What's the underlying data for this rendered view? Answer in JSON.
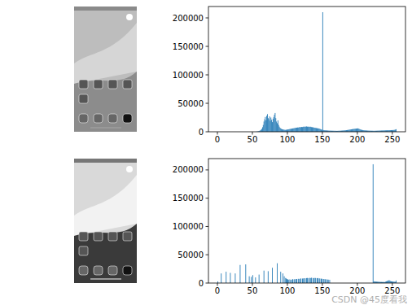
{
  "chart_data": [
    {
      "type": "histogram",
      "color": "#1f77b4",
      "xlim": [
        -12.8,
        268.8
      ],
      "ylim": [
        0,
        220000
      ],
      "xticks": [
        0,
        50,
        100,
        150,
        200,
        250
      ],
      "yticks": [
        0,
        50000,
        100000,
        150000,
        200000
      ],
      "bins": [
        0,
        1,
        2,
        3,
        4,
        5,
        6,
        7,
        8,
        9,
        10,
        11,
        12,
        13,
        14,
        15,
        16,
        17,
        18,
        19,
        20,
        21,
        22,
        23,
        24,
        25,
        26,
        27,
        28,
        29,
        30,
        31,
        32,
        33,
        34,
        35,
        36,
        37,
        38,
        39,
        40,
        41,
        42,
        43,
        44,
        45,
        46,
        47,
        48,
        49,
        50,
        51,
        52,
        53,
        54,
        55,
        56,
        57,
        58,
        59,
        60,
        61,
        62,
        63,
        64,
        65,
        66,
        67,
        68,
        69,
        70,
        71,
        72,
        73,
        74,
        75,
        76,
        77,
        78,
        79,
        80,
        81,
        82,
        83,
        84,
        85,
        86,
        87,
        88,
        89,
        90,
        91,
        92,
        93,
        94,
        95,
        96,
        97,
        98,
        99,
        100,
        101,
        102,
        103,
        104,
        105,
        106,
        107,
        108,
        109,
        110,
        111,
        112,
        113,
        114,
        115,
        116,
        117,
        118,
        119,
        120,
        121,
        122,
        123,
        124,
        125,
        126,
        127,
        128,
        129,
        130,
        131,
        132,
        133,
        134,
        135,
        136,
        137,
        138,
        139,
        140,
        141,
        142,
        143,
        144,
        145,
        146,
        147,
        148,
        149,
        150,
        151,
        152,
        153,
        154,
        155,
        156,
        157,
        158,
        159,
        160,
        161,
        162,
        163,
        164,
        165,
        166,
        167,
        168,
        169,
        170,
        171,
        172,
        173,
        174,
        175,
        176,
        177,
        178,
        179,
        180,
        181,
        182,
        183,
        184,
        185,
        186,
        187,
        188,
        189,
        190,
        191,
        192,
        193,
        194,
        195,
        196,
        197,
        198,
        199,
        200,
        201,
        202,
        203,
        204,
        205,
        206,
        207,
        208,
        209,
        210,
        211,
        212,
        213,
        214,
        215,
        216,
        217,
        218,
        219,
        220,
        221,
        222,
        223,
        224,
        225,
        226,
        227,
        228,
        229,
        230,
        231,
        232,
        233,
        234,
        235,
        236,
        237,
        238,
        239,
        240,
        241,
        242,
        243,
        244,
        245,
        246,
        247,
        248,
        249,
        250,
        251,
        252,
        253,
        254,
        255,
        256
      ],
      "values": [
        0,
        0,
        0,
        0,
        0,
        0,
        0,
        0,
        0,
        0,
        0,
        0,
        0,
        0,
        0,
        0,
        0,
        0,
        0,
        0,
        0,
        0,
        0,
        0,
        0,
        0,
        0,
        0,
        0,
        0,
        0,
        0,
        0,
        0,
        0,
        0,
        0,
        0,
        0,
        0,
        0,
        0,
        0,
        0,
        0,
        0,
        0,
        0,
        0,
        0,
        0,
        0,
        0,
        0,
        0,
        200,
        300,
        500,
        800,
        1200,
        1800,
        2500,
        3500,
        5000,
        8000,
        12000,
        18000,
        22000,
        26000,
        20000,
        28000,
        31000,
        24000,
        22000,
        27000,
        19000,
        25000,
        21000,
        17000,
        23000,
        26000,
        30000,
        33000,
        24000,
        18000,
        15000,
        20000,
        12000,
        9000,
        7000,
        6000,
        5000,
        4500,
        4000,
        3800,
        3500,
        3300,
        3200,
        3500,
        3800,
        4000,
        4200,
        4500,
        4800,
        5000,
        5200,
        5500,
        5800,
        6000,
        6200,
        6500,
        6800,
        7000,
        7200,
        7500,
        7300,
        7800,
        8000,
        8200,
        7900,
        8500,
        8300,
        8800,
        9000,
        8600,
        9200,
        8900,
        9400,
        9000,
        8700,
        9100,
        8800,
        8500,
        8900,
        8200,
        8000,
        7800,
        7500,
        7200,
        7000,
        6800,
        6500,
        6200,
        6000,
        5800,
        5500,
        5000,
        4500,
        4000,
        3500,
        210000,
        3000,
        2800,
        2600,
        2500,
        2400,
        2300,
        2200,
        2100,
        2000,
        2000,
        1900,
        1900,
        1800,
        1800,
        1800,
        1700,
        1700,
        1700,
        1600,
        1600,
        1600,
        1700,
        1700,
        1800,
        1800,
        1900,
        2000,
        2100,
        2200,
        2300,
        2400,
        2500,
        2600,
        2800,
        3000,
        3200,
        3400,
        3600,
        3800,
        4000,
        4200,
        4500,
        4700,
        4900,
        5000,
        5200,
        5300,
        5500,
        5600,
        6000,
        5500,
        5000,
        4500,
        4000,
        3600,
        3300,
        3000,
        2800,
        2600,
        2500,
        2400,
        2300,
        2200,
        2100,
        2000,
        2000,
        1900,
        1900,
        1800,
        1800,
        1800,
        1700,
        1700,
        1700,
        1700,
        1800,
        1800,
        1900,
        1900,
        2000,
        2000,
        2100,
        2100,
        2200,
        2200,
        2300,
        2300,
        2400,
        2400,
        2500,
        2500,
        2600,
        2600,
        2700,
        2700,
        2800,
        2800,
        2900,
        2900,
        3000,
        3000,
        3200,
        3400,
        3800,
        4500
      ]
    },
    {
      "type": "histogram",
      "color": "#1f77b4",
      "xlim": [
        -12.8,
        268.8
      ],
      "ylim": [
        0,
        220000
      ],
      "xticks": [
        0,
        50,
        100,
        150,
        200,
        250
      ],
      "yticks": [
        0,
        50000,
        100000,
        150000,
        200000
      ],
      "bins": [
        0,
        1,
        2,
        3,
        4,
        5,
        6,
        7,
        8,
        9,
        10,
        11,
        12,
        13,
        14,
        15,
        16,
        17,
        18,
        19,
        20,
        21,
        22,
        23,
        24,
        25,
        26,
        27,
        28,
        29,
        30,
        31,
        32,
        33,
        34,
        35,
        36,
        37,
        38,
        39,
        40,
        41,
        42,
        43,
        44,
        45,
        46,
        47,
        48,
        49,
        50,
        51,
        52,
        53,
        54,
        55,
        56,
        57,
        58,
        59,
        60,
        61,
        62,
        63,
        64,
        65,
        66,
        67,
        68,
        69,
        70,
        71,
        72,
        73,
        74,
        75,
        76,
        77,
        78,
        79,
        80,
        81,
        82,
        83,
        84,
        85,
        86,
        87,
        88,
        89,
        90,
        91,
        92,
        93,
        94,
        95,
        96,
        97,
        98,
        99,
        100,
        101,
        102,
        103,
        104,
        105,
        106,
        107,
        108,
        109,
        110,
        111,
        112,
        113,
        114,
        115,
        116,
        117,
        118,
        119,
        120,
        121,
        122,
        123,
        124,
        125,
        126,
        127,
        128,
        129,
        130,
        131,
        132,
        133,
        134,
        135,
        136,
        137,
        138,
        139,
        140,
        141,
        142,
        143,
        144,
        145,
        146,
        147,
        148,
        149,
        150,
        151,
        152,
        153,
        154,
        155,
        156,
        157,
        158,
        159,
        160,
        161,
        162,
        163,
        164,
        165,
        166,
        167,
        168,
        169,
        170,
        171,
        172,
        173,
        174,
        175,
        176,
        177,
        178,
        179,
        180,
        181,
        182,
        183,
        184,
        185,
        186,
        187,
        188,
        189,
        190,
        191,
        192,
        193,
        194,
        195,
        196,
        197,
        198,
        199,
        200,
        201,
        202,
        203,
        204,
        205,
        206,
        207,
        208,
        209,
        210,
        211,
        212,
        213,
        214,
        215,
        216,
        217,
        218,
        219,
        220,
        221,
        222,
        223,
        224,
        225,
        226,
        227,
        228,
        229,
        230,
        231,
        232,
        233,
        234,
        235,
        236,
        237,
        238,
        239,
        240,
        241,
        242,
        243,
        244,
        245,
        246,
        247,
        248,
        249,
        250,
        251,
        252,
        253,
        254,
        255,
        256
      ],
      "values": [
        3000,
        0,
        0,
        0,
        0,
        17000,
        0,
        0,
        0,
        0,
        0,
        0,
        20000,
        0,
        0,
        0,
        0,
        0,
        18000,
        0,
        0,
        0,
        0,
        0,
        0,
        17000,
        0,
        0,
        0,
        0,
        0,
        0,
        32000,
        0,
        0,
        0,
        0,
        0,
        0,
        0,
        33000,
        0,
        0,
        0,
        0,
        12000,
        0,
        0,
        11000,
        0,
        14000,
        0,
        0,
        0,
        10000,
        0,
        0,
        0,
        0,
        15000,
        0,
        0,
        0,
        0,
        0,
        0,
        22000,
        0,
        0,
        0,
        0,
        0,
        21000,
        0,
        0,
        0,
        0,
        0,
        27000,
        0,
        0,
        0,
        0,
        0,
        0,
        35000,
        0,
        0,
        0,
        0,
        20000,
        0,
        0,
        17000,
        0,
        12000,
        0,
        9000,
        8000,
        7000,
        6500,
        6000,
        0,
        6500,
        5500,
        0,
        6000,
        7000,
        0,
        6500,
        6800,
        0,
        7000,
        7200,
        0,
        7500,
        7300,
        0,
        7800,
        8000,
        0,
        7900,
        8200,
        0,
        8500,
        8300,
        0,
        8800,
        9000,
        0,
        8600,
        9200,
        0,
        8900,
        9400,
        0,
        9000,
        8700,
        0,
        9100,
        8800,
        0,
        8500,
        8900,
        0,
        8200,
        8000,
        0,
        7800,
        7500,
        0,
        7200,
        7000,
        0,
        6800,
        6500,
        0,
        6200,
        6000,
        0,
        5800,
        0,
        0,
        0,
        0,
        0,
        0,
        0,
        0,
        0,
        0,
        0,
        0,
        0,
        0,
        0,
        0,
        0,
        0,
        0,
        0,
        0,
        0,
        0,
        0,
        0,
        0,
        0,
        0,
        0,
        0,
        0,
        0,
        0,
        0,
        0,
        0,
        0,
        0,
        0,
        0,
        0,
        0,
        0,
        0,
        0,
        0,
        0,
        0,
        0,
        0,
        0,
        0,
        0,
        0,
        0,
        0,
        0,
        0,
        0,
        0,
        0,
        210000,
        3000,
        2800,
        2600,
        2500,
        2400,
        2300,
        2200,
        2100,
        2000,
        2000,
        1900,
        1900,
        1800,
        1800,
        1800,
        1700,
        1700,
        2500,
        3000,
        3500,
        4000,
        4500,
        5000,
        4000,
        3500,
        3000,
        2800,
        2600,
        2400,
        2300,
        2200,
        2100,
        4500
      ]
    }
  ],
  "watermark": "CSDN @45度看我"
}
